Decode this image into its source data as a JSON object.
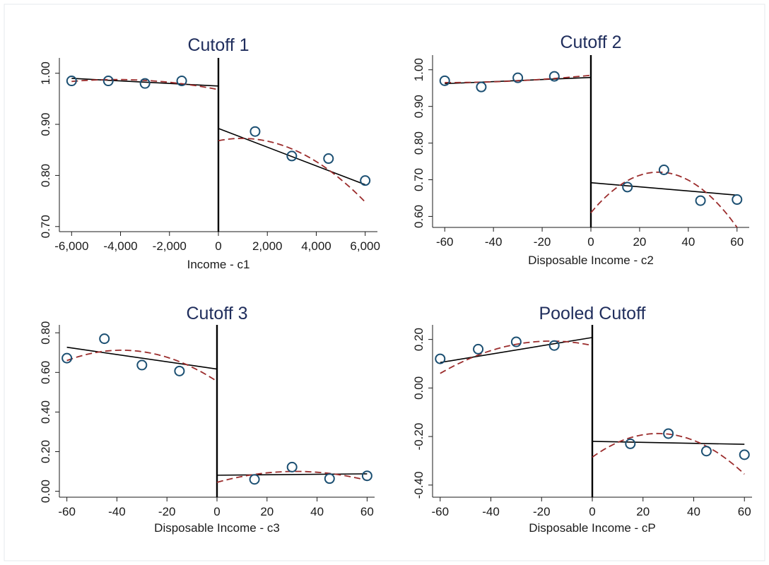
{
  "colors": {
    "background": "#ffffff",
    "frame": "#e6e9ec",
    "marker": "#1b4f72",
    "linear_fit": "#000000",
    "quadratic_fit": "#9b2c2c",
    "title": "#1f2d5c"
  },
  "chart_data": [
    {
      "type": "scatter",
      "title": "Cutoff 1",
      "xlabel": "Income - c1",
      "ylabel": "",
      "xlim": [
        -6500,
        6500
      ],
      "ylim": [
        0.69,
        1.03
      ],
      "xticks": [
        -6000,
        -4000,
        -2000,
        0,
        2000,
        4000,
        6000
      ],
      "xtick_labels": [
        "-6,000",
        "-4,000",
        "-2,000",
        "0",
        "2,000",
        "4,000",
        "6,000"
      ],
      "yticks": [
        0.7,
        0.8,
        0.9,
        1.0
      ],
      "ytick_labels": [
        "0.70",
        "0.80",
        "0.90",
        "1.00"
      ],
      "cutoff_x": 0,
      "grid": false,
      "series": [
        {
          "kind": "points",
          "x": [
            -6000,
            -4500,
            -3000,
            -1500,
            1500,
            3000,
            4500,
            6000
          ],
          "y": [
            0.985,
            0.985,
            0.98,
            0.985,
            0.886,
            0.838,
            0.833,
            0.79
          ]
        },
        {
          "kind": "linear_fit",
          "segments": [
            {
              "x": [
                -6000,
                0
              ],
              "y": [
                0.99,
                0.975
              ]
            },
            {
              "x": [
                0,
                6000
              ],
              "y": [
                0.892,
                0.782
              ]
            }
          ]
        },
        {
          "kind": "quadratic_fit",
          "segments": [
            {
              "x": [
                -6000,
                -3000,
                0
              ],
              "y": [
                0.984,
                0.986,
                0.968
              ]
            },
            {
              "x": [
                0,
                3000,
                6000
              ],
              "y": [
                0.868,
                0.852,
                0.748
              ]
            }
          ]
        }
      ]
    },
    {
      "type": "scatter",
      "title": "Cutoff 2",
      "xlabel": "Disposable Income - c2",
      "ylabel": "",
      "xlim": [
        -65,
        65
      ],
      "ylim": [
        0.57,
        1.04
      ],
      "xticks": [
        -60,
        -40,
        -20,
        0,
        20,
        40,
        60
      ],
      "xtick_labels": [
        "-60",
        "-40",
        "-20",
        "0",
        "20",
        "40",
        "60"
      ],
      "yticks": [
        0.6,
        0.7,
        0.8,
        0.9,
        1.0
      ],
      "ytick_labels": [
        "0.60",
        "0.70",
        "0.80",
        "0.90",
        "1.00"
      ],
      "cutoff_x": 0,
      "grid": false,
      "series": [
        {
          "kind": "points",
          "x": [
            -60,
            -45,
            -30,
            -15,
            15,
            30,
            45,
            60
          ],
          "y": [
            0.97,
            0.953,
            0.978,
            0.982,
            0.68,
            0.727,
            0.643,
            0.646
          ]
        },
        {
          "kind": "linear_fit",
          "segments": [
            {
              "x": [
                -60,
                0
              ],
              "y": [
                0.962,
                0.979
              ]
            },
            {
              "x": [
                0,
                60
              ],
              "y": [
                0.692,
                0.658
              ]
            }
          ]
        },
        {
          "kind": "quadratic_fit",
          "segments": [
            {
              "x": [
                -60,
                -30,
                0
              ],
              "y": [
                0.965,
                0.97,
                0.985
              ]
            },
            {
              "x": [
                0,
                30,
                60
              ],
              "y": [
                0.61,
                0.72,
                0.57
              ]
            }
          ]
        }
      ]
    },
    {
      "type": "scatter",
      "title": "Cutoff 3",
      "xlabel": "Disposable Income - c3",
      "ylabel": "",
      "xlim": [
        -63,
        63
      ],
      "ylim": [
        -0.03,
        0.84
      ],
      "xticks": [
        -60,
        -40,
        -20,
        0,
        20,
        40,
        60
      ],
      "xtick_labels": [
        "-60",
        "-40",
        "-20",
        "0",
        "20",
        "40",
        "60"
      ],
      "yticks": [
        0.0,
        0.2,
        0.4,
        0.6,
        0.8
      ],
      "ytick_labels": [
        "0.00",
        "0.20",
        "0.40",
        "0.60",
        "0.80"
      ],
      "cutoff_x": 0,
      "grid": false,
      "series": [
        {
          "kind": "points",
          "x": [
            -60,
            -45,
            -30,
            -15,
            15,
            30,
            45,
            60
          ],
          "y": [
            0.672,
            0.77,
            0.637,
            0.607,
            0.06,
            0.122,
            0.064,
            0.078
          ]
        },
        {
          "kind": "linear_fit",
          "segments": [
            {
              "x": [
                -60,
                0
              ],
              "y": [
                0.727,
                0.617
              ]
            },
            {
              "x": [
                0,
                60
              ],
              "y": [
                0.081,
                0.088
              ]
            }
          ]
        },
        {
          "kind": "quadratic_fit",
          "segments": [
            {
              "x": [
                -60,
                -30,
                0
              ],
              "y": [
                0.66,
                0.705,
                0.555
              ]
            },
            {
              "x": [
                0,
                30,
                60
              ],
              "y": [
                0.045,
                0.1,
                0.055
              ]
            }
          ]
        }
      ]
    },
    {
      "type": "scatter",
      "title": "Pooled Cutoff",
      "xlabel": "Disposable Income - cP",
      "ylabel": "",
      "xlim": [
        -63,
        63
      ],
      "ylim": [
        -0.45,
        0.26
      ],
      "xticks": [
        -60,
        -40,
        -20,
        0,
        20,
        40,
        60
      ],
      "xtick_labels": [
        "-60",
        "-40",
        "-20",
        "0",
        "20",
        "40",
        "60"
      ],
      "yticks": [
        -0.4,
        -0.2,
        0.0,
        0.2
      ],
      "ytick_labels": [
        "-0.40",
        "-0.20",
        "0.00",
        "0.20"
      ],
      "cutoff_x": 0,
      "grid": false,
      "series": [
        {
          "kind": "points",
          "x": [
            -60,
            -45,
            -30,
            -15,
            15,
            30,
            45,
            60
          ],
          "y": [
            0.12,
            0.16,
            0.19,
            0.175,
            -0.23,
            -0.188,
            -0.26,
            -0.275
          ]
        },
        {
          "kind": "linear_fit",
          "segments": [
            {
              "x": [
                -60,
                0
              ],
              "y": [
                0.105,
                0.208
              ]
            },
            {
              "x": [
                0,
                60
              ],
              "y": [
                -0.22,
                -0.232
              ]
            }
          ]
        },
        {
          "kind": "quadratic_fit",
          "segments": [
            {
              "x": [
                -60,
                -30,
                0
              ],
              "y": [
                0.06,
                0.18,
                0.175
              ]
            },
            {
              "x": [
                0,
                30,
                60
              ],
              "y": [
                -0.285,
                -0.19,
                -0.355
              ]
            }
          ]
        }
      ]
    }
  ]
}
